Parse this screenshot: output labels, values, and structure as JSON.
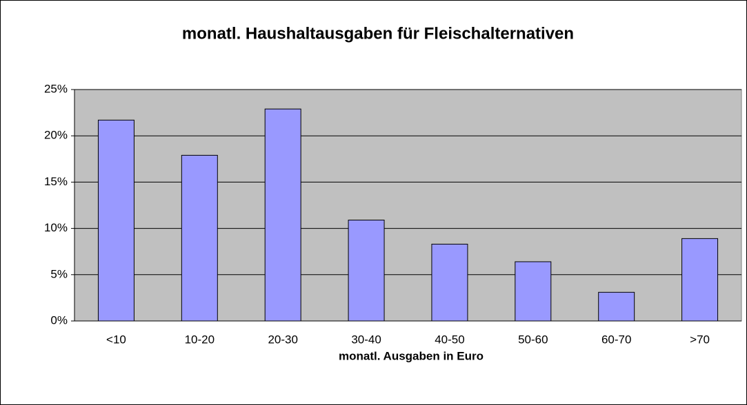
{
  "chart_data": {
    "type": "bar",
    "title": "monatl. Haushaltausgaben für Fleischalternativen",
    "x_label": "monatl. Ausgaben in Euro",
    "categories": [
      "<10",
      "10-20",
      "20-30",
      "30-40",
      "40-50",
      "50-60",
      "60-70",
      ">70"
    ],
    "values": [
      21.7,
      17.9,
      22.9,
      10.9,
      8.3,
      6.4,
      3.1,
      8.9
    ],
    "color": "#9999ff",
    "ylim": [
      0,
      25
    ],
    "yticks": [
      {
        "value": 0,
        "label": "0%"
      },
      {
        "value": 5,
        "label": "5%"
      },
      {
        "value": 10,
        "label": "10%"
      },
      {
        "value": 15,
        "label": "15%"
      },
      {
        "value": 20,
        "label": "20%"
      },
      {
        "value": 25,
        "label": "25%"
      }
    ],
    "grid": true
  }
}
